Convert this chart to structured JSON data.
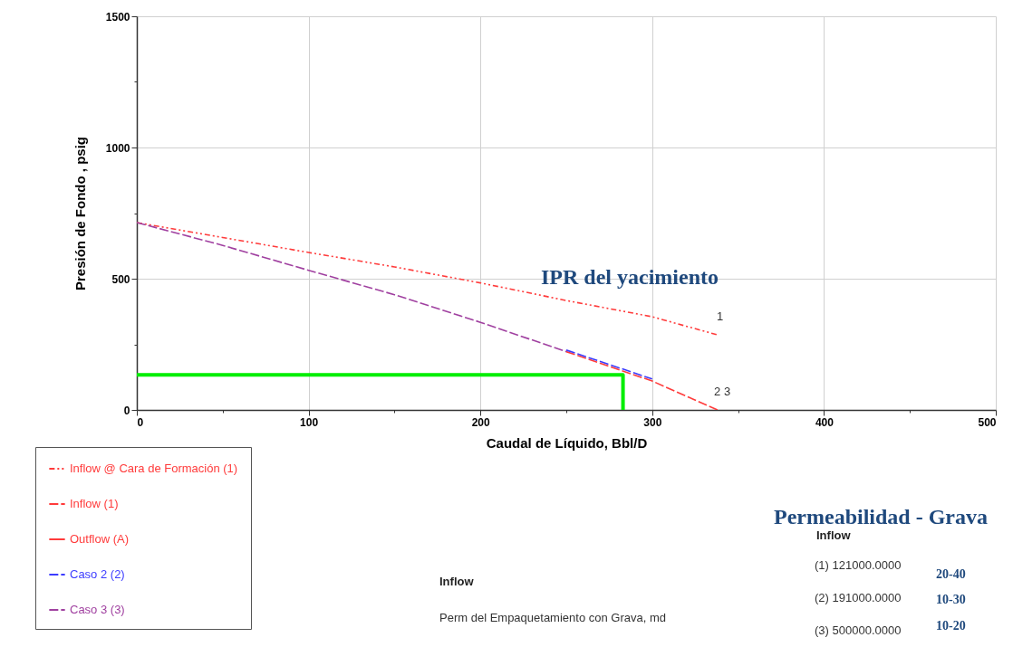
{
  "chart_data": {
    "type": "line",
    "xlabel": "Caudal de Líquido, Bbl/D",
    "ylabel": "Presión de Fondo , psig",
    "xlim": [
      0,
      500
    ],
    "ylim": [
      0,
      1500
    ],
    "xticks": [
      0,
      {
        "value": 50,
        "label": null
      },
      100,
      {
        "value": 150,
        "label": null
      },
      200,
      {
        "value": 250,
        "label": null
      },
      300,
      {
        "value": 350,
        "label": null
      },
      400,
      {
        "value": 450,
        "label": null
      },
      500
    ],
    "yticks": [
      0,
      {
        "value": 250,
        "label": null
      },
      500,
      {
        "value": 750,
        "label": null
      },
      1000,
      {
        "value": 1250,
        "label": null
      },
      1500
    ],
    "grid": true,
    "legend": "bottom left",
    "marker": "none",
    "series": [
      {
        "name": "Inflow @ Cara de Formación (1)",
        "color": "#ff3b3b",
        "line_style": "dotted",
        "x": [
          0,
          50,
          100,
          150,
          200,
          250,
          300,
          338
        ],
        "values": [
          714,
          657,
          600,
          545,
          484,
          417,
          355,
          286
        ]
      },
      {
        "name": "Inflow (1)",
        "color": "#ff3b3b",
        "line_style": "dashed",
        "x": [
          250,
          300,
          338
        ],
        "values": [
          222,
          110,
          0
        ]
      },
      {
        "name": "Outflow (A)",
        "color": "#ff3b3b",
        "line_style": "solid"
      },
      {
        "name": "Caso  2 (2)",
        "color": "#3c3cff",
        "line_style": "dashed",
        "x": [
          250,
          300
        ],
        "values": [
          228,
          118
        ]
      },
      {
        "name": "Caso  3 (3)",
        "color": "#a040a0",
        "line_style": "dashed",
        "x": [
          0,
          50,
          100,
          150,
          200,
          250
        ],
        "values": [
          714,
          627,
          532,
          439,
          334,
          222
        ]
      },
      {
        "color": "#00ee00",
        "line_style": "solid",
        "x": [
          0,
          283,
          283
        ],
        "values": [
          134,
          134,
          0
        ]
      }
    ],
    "annotations": [
      "1",
      "2",
      "3",
      "IPR del yacimiento",
      "Permeabilidad - Grava",
      "Inflow",
      "(1)  121000.0000",
      "(2)  191000.0000",
      "(3)  500000.0000",
      "20-40",
      "10-30",
      "10-20",
      "Inflow",
      "Perm del Empaquetamiento con Grava,  md"
    ]
  }
}
